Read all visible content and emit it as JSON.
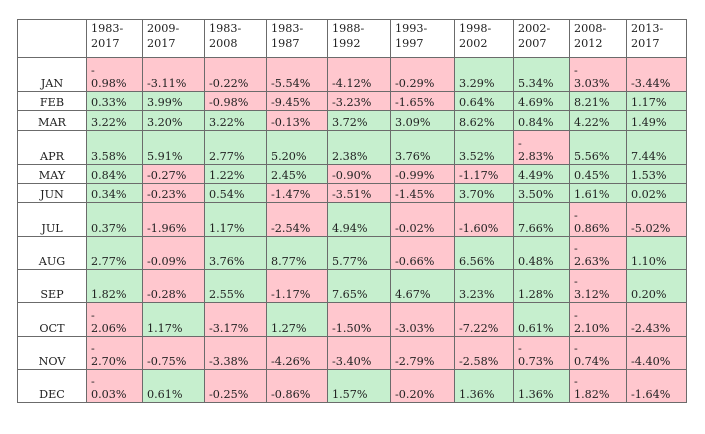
{
  "columns": [
    "1983-2017",
    "2009-2017",
    "1983-2008",
    "1983-1987",
    "1988-1992",
    "1993-1997",
    "1998-2002",
    "2002-2007",
    "2008-2012",
    "2013-2017"
  ],
  "rows": [
    {
      "month": "JAN",
      "values": [
        "0.98%",
        "-3.11%",
        "-0.22%",
        "-5.54%",
        "-4.12%",
        "-0.29%",
        "3.29%",
        "5.34%",
        "3.03%",
        "-3.44%"
      ],
      "dash": [
        true,
        false,
        false,
        false,
        false,
        false,
        false,
        false,
        true,
        false
      ],
      "signs": [
        "neg",
        "neg",
        "neg",
        "neg",
        "neg",
        "neg",
        "pos",
        "pos",
        "neg",
        "neg"
      ]
    },
    {
      "month": "FEB",
      "values": [
        "0.33%",
        "3.99%",
        "-0.98%",
        "-9.45%",
        "-3.23%",
        "-1.65%",
        "0.64%",
        "4.69%",
        "8.21%",
        "1.17%"
      ],
      "dash": [
        false,
        false,
        false,
        false,
        false,
        false,
        false,
        false,
        false,
        false
      ],
      "signs": [
        "pos",
        "pos",
        "neg",
        "neg",
        "neg",
        "neg",
        "pos",
        "pos",
        "pos",
        "pos"
      ]
    },
    {
      "month": "MAR",
      "values": [
        "3.22%",
        "3.20%",
        "3.22%",
        "-0.13%",
        "3.72%",
        "3.09%",
        "8.62%",
        "0.84%",
        "4.22%",
        "1.49%"
      ],
      "dash": [
        false,
        false,
        false,
        false,
        false,
        false,
        false,
        false,
        false,
        false
      ],
      "signs": [
        "pos",
        "pos",
        "pos",
        "neg",
        "pos",
        "pos",
        "pos",
        "pos",
        "pos",
        "pos"
      ]
    },
    {
      "month": "APR",
      "values": [
        "3.58%",
        "5.91%",
        "2.77%",
        "5.20%",
        "2.38%",
        "3.76%",
        "3.52%",
        "2.83%",
        "5.56%",
        "7.44%"
      ],
      "dash": [
        false,
        false,
        false,
        false,
        false,
        false,
        false,
        true,
        false,
        false
      ],
      "signs": [
        "pos",
        "pos",
        "pos",
        "pos",
        "pos",
        "pos",
        "pos",
        "neg",
        "pos",
        "pos"
      ]
    },
    {
      "month": "MAY",
      "values": [
        "0.84%",
        "-0.27%",
        "1.22%",
        "2.45%",
        "-0.90%",
        "-0.99%",
        "-1.17%",
        "4.49%",
        "0.45%",
        "1.53%"
      ],
      "dash": [
        false,
        false,
        false,
        false,
        false,
        false,
        false,
        false,
        false,
        false
      ],
      "signs": [
        "pos",
        "neg",
        "pos",
        "pos",
        "neg",
        "neg",
        "neg",
        "pos",
        "pos",
        "pos"
      ]
    },
    {
      "month": "JUN",
      "values": [
        "0.34%",
        "-0.23%",
        "0.54%",
        "-1.47%",
        "-3.51%",
        "-1.45%",
        "3.70%",
        "3.50%",
        "1.61%",
        "0.02%"
      ],
      "dash": [
        false,
        false,
        false,
        false,
        false,
        false,
        false,
        false,
        false,
        false
      ],
      "signs": [
        "pos",
        "neg",
        "pos",
        "neg",
        "neg",
        "neg",
        "pos",
        "pos",
        "pos",
        "pos"
      ]
    },
    {
      "month": "JUL",
      "values": [
        "0.37%",
        "-1.96%",
        "1.17%",
        "-2.54%",
        "4.94%",
        "-0.02%",
        "-1.60%",
        "7.66%",
        "0.86%",
        "-5.02%"
      ],
      "dash": [
        false,
        false,
        false,
        false,
        false,
        false,
        false,
        false,
        true,
        false
      ],
      "signs": [
        "pos",
        "neg",
        "pos",
        "neg",
        "pos",
        "neg",
        "neg",
        "pos",
        "neg",
        "neg"
      ]
    },
    {
      "month": "AUG",
      "values": [
        "2.77%",
        "-0.09%",
        "3.76%",
        "8.77%",
        "5.77%",
        "-0.66%",
        "6.56%",
        "0.48%",
        "2.63%",
        "1.10%"
      ],
      "dash": [
        false,
        false,
        false,
        false,
        false,
        false,
        false,
        false,
        true,
        false
      ],
      "signs": [
        "pos",
        "neg",
        "pos",
        "pos",
        "pos",
        "neg",
        "pos",
        "pos",
        "neg",
        "pos"
      ]
    },
    {
      "month": "SEP",
      "values": [
        "1.82%",
        "-0.28%",
        "2.55%",
        "-1.17%",
        "7.65%",
        "4.67%",
        "3.23%",
        "1.28%",
        "3.12%",
        "0.20%"
      ],
      "dash": [
        false,
        false,
        false,
        false,
        false,
        false,
        false,
        false,
        true,
        false
      ],
      "signs": [
        "pos",
        "neg",
        "pos",
        "neg",
        "pos",
        "pos",
        "pos",
        "pos",
        "neg",
        "pos"
      ]
    },
    {
      "month": "OCT",
      "values": [
        "2.06%",
        "1.17%",
        "-3.17%",
        "1.27%",
        "-1.50%",
        "-3.03%",
        "-7.22%",
        "0.61%",
        "2.10%",
        "-2.43%"
      ],
      "dash": [
        true,
        false,
        false,
        false,
        false,
        false,
        false,
        false,
        true,
        false
      ],
      "signs": [
        "neg",
        "pos",
        "neg",
        "pos",
        "neg",
        "neg",
        "neg",
        "pos",
        "neg",
        "neg"
      ]
    },
    {
      "month": "NOV",
      "values": [
        "2.70%",
        "-0.75%",
        "-3.38%",
        "-4.26%",
        "-3.40%",
        "-2.79%",
        "-2.58%",
        "0.73%",
        "0.74%",
        "-4.40%"
      ],
      "dash": [
        true,
        false,
        false,
        false,
        false,
        false,
        false,
        true,
        true,
        false
      ],
      "signs": [
        "neg",
        "neg",
        "neg",
        "neg",
        "neg",
        "neg",
        "neg",
        "neg",
        "neg",
        "neg"
      ]
    },
    {
      "month": "DEC",
      "values": [
        "0.03%",
        "0.61%",
        "-0.25%",
        "-0.86%",
        "1.57%",
        "-0.20%",
        "1.36%",
        "1.36%",
        "1.82%",
        "-1.64%"
      ],
      "dash": [
        true,
        false,
        false,
        false,
        false,
        false,
        false,
        false,
        true,
        false
      ],
      "signs": [
        "neg",
        "pos",
        "neg",
        "neg",
        "pos",
        "neg",
        "pos",
        "pos",
        "neg",
        "neg"
      ]
    }
  ],
  "colors": {
    "positive": "#c6efce",
    "negative": "#ffc7ce",
    "border": "#6b6b6b"
  }
}
